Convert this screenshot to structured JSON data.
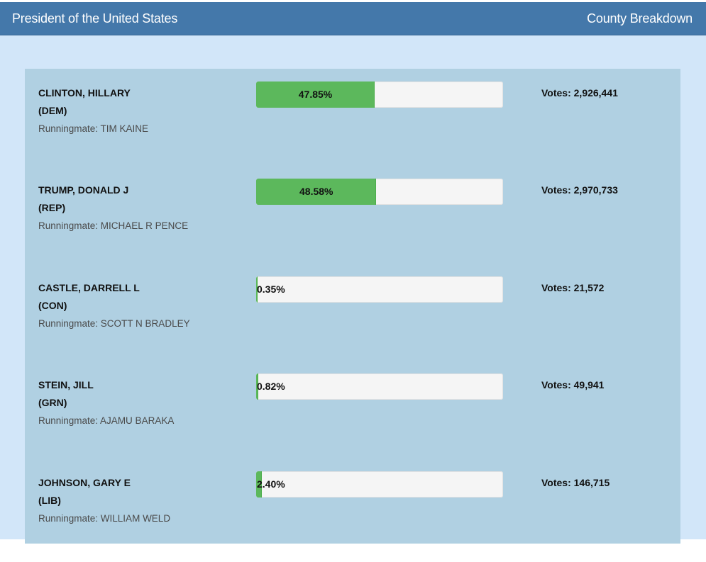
{
  "header": {
    "title": "President of the United States",
    "link_label": "County Breakdown"
  },
  "colors": {
    "header_bg": "#4478aa",
    "panel_bg": "#d2e6f9",
    "results_bg": "#b0d0e2",
    "bar_fill": "#5cb85c",
    "bar_track": "#f5f5f5"
  },
  "candidates": [
    {
      "name": "CLINTON, HILLARY",
      "party": "(DEM)",
      "runningmate": "Runningmate: TIM KAINE",
      "percent_label": "47.85%",
      "percent_value": 47.85,
      "votes": "Votes: 2,926,441"
    },
    {
      "name": "TRUMP, DONALD J",
      "party": "(REP)",
      "runningmate": "Runningmate: MICHAEL R PENCE",
      "percent_label": "48.58%",
      "percent_value": 48.58,
      "votes": "Votes: 2,970,733"
    },
    {
      "name": "CASTLE, DARRELL L",
      "party": "(CON)",
      "runningmate": "Runningmate: SCOTT N BRADLEY",
      "percent_label": "0.35%",
      "percent_value": 0.35,
      "votes": "Votes: 21,572"
    },
    {
      "name": "STEIN, JILL",
      "party": "(GRN)",
      "runningmate": "Runningmate: AJAMU BARAKA",
      "percent_label": "0.82%",
      "percent_value": 0.82,
      "votes": "Votes: 49,941"
    },
    {
      "name": "JOHNSON, GARY E",
      "party": "(LIB)",
      "runningmate": "Runningmate: WILLIAM WELD",
      "percent_label": "2.40%",
      "percent_value": 2.4,
      "votes": "Votes: 146,715"
    }
  ]
}
